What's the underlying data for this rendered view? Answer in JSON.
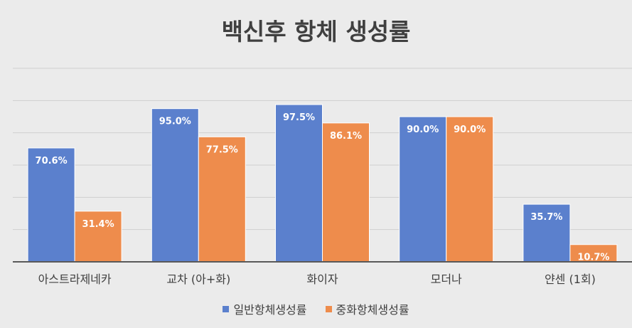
{
  "chart_data": {
    "type": "bar",
    "title": "백신후 항체 생성률",
    "categories": [
      "아스트라제네카",
      "교차 (아+화)",
      "화이자",
      "모더나",
      "얀센 (1회)"
    ],
    "series": [
      {
        "name": "일반항체생성률",
        "color": "#5b80cd",
        "values": [
          70.6,
          95.0,
          97.5,
          90.0,
          35.7
        ],
        "labels": [
          "70.6%",
          "95.0%",
          "97.5%",
          "90.0%",
          "35.7%"
        ]
      },
      {
        "name": "중화항체생성률",
        "color": "#ee8c4c",
        "values": [
          31.4,
          77.5,
          86.1,
          90.0,
          10.7
        ],
        "labels": [
          "31.4%",
          "77.5%",
          "86.1%",
          "90.0%",
          "10.7%"
        ]
      }
    ],
    "ylim": [
      0,
      120
    ],
    "grid": true,
    "legend": "bottom"
  }
}
